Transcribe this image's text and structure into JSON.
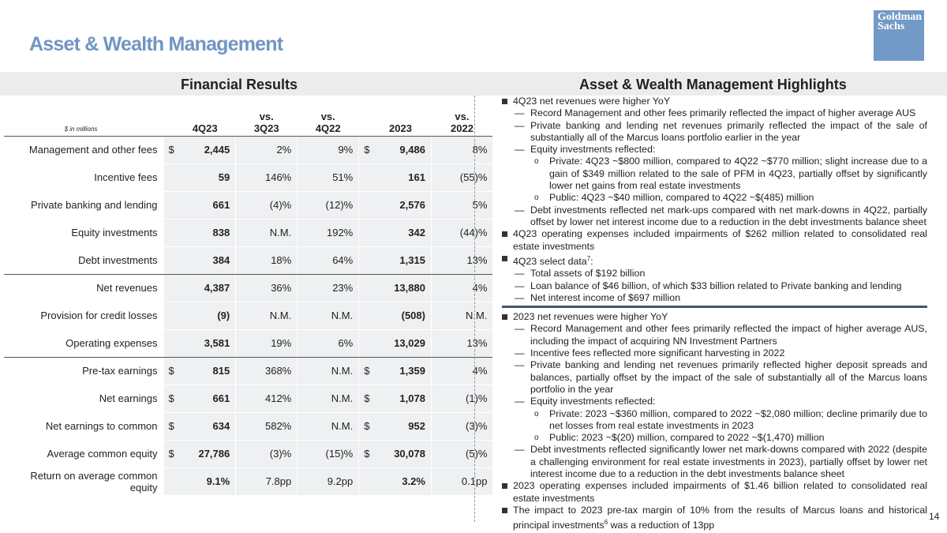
{
  "header": {
    "title": "Asset & Wealth Management",
    "logo": [
      "Goldman",
      "Sachs"
    ]
  },
  "table": {
    "title": "Financial Results",
    "unit": "$ in millions",
    "columns": [
      [
        "4Q23"
      ],
      [
        "vs.",
        "3Q23"
      ],
      [
        "vs.",
        "4Q22"
      ],
      [
        "2023"
      ],
      [
        "vs.",
        "2022"
      ]
    ],
    "rows": [
      {
        "label": "Management and other fees",
        "currency": "$",
        "values": [
          "2,445",
          "2%",
          "9%",
          "9,486",
          "8%"
        ],
        "currency2": "$"
      },
      {
        "label": "Incentive fees",
        "values": [
          "59",
          "146%",
          "51%",
          "161",
          "(55)%"
        ]
      },
      {
        "label": "Private banking and lending",
        "values": [
          "661",
          "(4)%",
          "(12)%",
          "2,576",
          "5%"
        ]
      },
      {
        "label": "Equity investments",
        "values": [
          "838",
          "N.M.",
          "192%",
          "342",
          "(44)%"
        ]
      },
      {
        "label": "Debt investments",
        "values": [
          "384",
          "18%",
          "64%",
          "1,315",
          "13%"
        ]
      },
      {
        "label": "Net revenues",
        "values": [
          "4,387",
          "36%",
          "23%",
          "13,880",
          "4%"
        ]
      },
      {
        "label": "Provision for credit losses",
        "values": [
          "(9)",
          "N.M.",
          "N.M.",
          "(508)",
          "N.M."
        ]
      },
      {
        "label": "Operating expenses",
        "values": [
          "3,581",
          "19%",
          "6%",
          "13,029",
          "13%"
        ]
      },
      {
        "label": "Pre-tax earnings",
        "currency": "$",
        "values": [
          "815",
          "368%",
          "N.M.",
          "1,359",
          "4%"
        ],
        "currency2": "$"
      },
      {
        "label": "Net earnings",
        "currency": "$",
        "values": [
          "661",
          "412%",
          "N.M.",
          "1,078",
          "(1)%"
        ],
        "currency2": "$"
      },
      {
        "label": "Net earnings to common",
        "currency": "$",
        "values": [
          "634",
          "582%",
          "N.M.",
          "952",
          "(3)%"
        ],
        "currency2": "$"
      },
      {
        "label": "Average common equity",
        "currency": "$",
        "values": [
          "27,786",
          "(3)%",
          "(15)%",
          "30,078",
          "(5)%"
        ],
        "currency2": "$"
      },
      {
        "label": "Return on average common equity",
        "values": [
          "9.1%",
          "7.8pp",
          "9.2pp",
          "3.2%",
          "0.1pp"
        ]
      }
    ]
  },
  "highlights": {
    "title": "Asset & Wealth Management Highlights",
    "sections": [
      [
        {
          "level": 1,
          "text": "4Q23 net revenues were higher YoY"
        },
        {
          "level": 2,
          "text": "Record Management and other fees primarily reflected the impact of higher average AUS"
        },
        {
          "level": 2,
          "text": "Private banking and lending net revenues primarily reflected the impact of the sale of substantially all of the Marcus loans portfolio earlier in the year"
        },
        {
          "level": 2,
          "text": "Equity investments reflected:"
        },
        {
          "level": 3,
          "text": "Private: 4Q23 ~$800 million, compared to 4Q22 ~$770 million; slight increase due to a gain of $349 million related to the sale of PFM in 4Q23, partially offset by significantly lower net gains from real estate investments"
        },
        {
          "level": 3,
          "text": "Public: 4Q23 ~$40 million, compared to 4Q22 ~$(485) million"
        },
        {
          "level": 2,
          "text": "Debt investments reflected net mark-ups compared with net mark-downs in 4Q22, partially offset by lower net interest income due to a reduction in the debt investments balance sheet"
        },
        {
          "level": 1,
          "text": "4Q23 operating expenses included impairments of $262 million related to consolidated real estate investments"
        },
        {
          "level": 1,
          "text": "4Q23 select data",
          "sup": "7",
          "rest": ":"
        },
        {
          "level": 2,
          "text": "Total assets of $192 billion"
        },
        {
          "level": 2,
          "text": "Loan balance of $46 billion, of which $33 billion related to Private banking and lending"
        },
        {
          "level": 2,
          "text": "Net interest income of $697 million"
        }
      ],
      [
        {
          "level": 1,
          "text": "2023 net revenues were higher YoY"
        },
        {
          "level": 2,
          "text": "Record Management and other fees primarily reflected the impact of higher average AUS, including the impact of acquiring NN Investment Partners"
        },
        {
          "level": 2,
          "text": "Incentive fees reflected more significant harvesting in 2022"
        },
        {
          "level": 2,
          "text": "Private banking and lending net revenues primarily reflected higher deposit spreads and balances, partially offset by the impact of the sale of substantially all of the Marcus loans portfolio in the year"
        },
        {
          "level": 2,
          "text": "Equity investments reflected:"
        },
        {
          "level": 3,
          "text": "Private: 2023 ~$360 million, compared to 2022 ~$2,080 million; decline primarily due to net losses from real estate investments in 2023"
        },
        {
          "level": 3,
          "text": "Public: 2023 ~$(20) million, compared to 2022 ~$(1,470) million"
        },
        {
          "level": 2,
          "text": "Debt investments reflected significantly lower net mark-downs compared with 2022 (despite a challenging environment for real estate investments in 2023), partially offset by lower net interest income due to a reduction in the debt investments balance sheet"
        },
        {
          "level": 1,
          "text": "2023 operating expenses included impairments of $1.46 billion related to consolidated real estate investments"
        },
        {
          "level": 1,
          "text": "The impact to 2023 pre-tax margin of 10% from the results of Marcus loans and historical principal investments",
          "sup": "6",
          "rest": " was a reduction of 13pp"
        }
      ]
    ]
  },
  "footer": {
    "page": "14"
  }
}
